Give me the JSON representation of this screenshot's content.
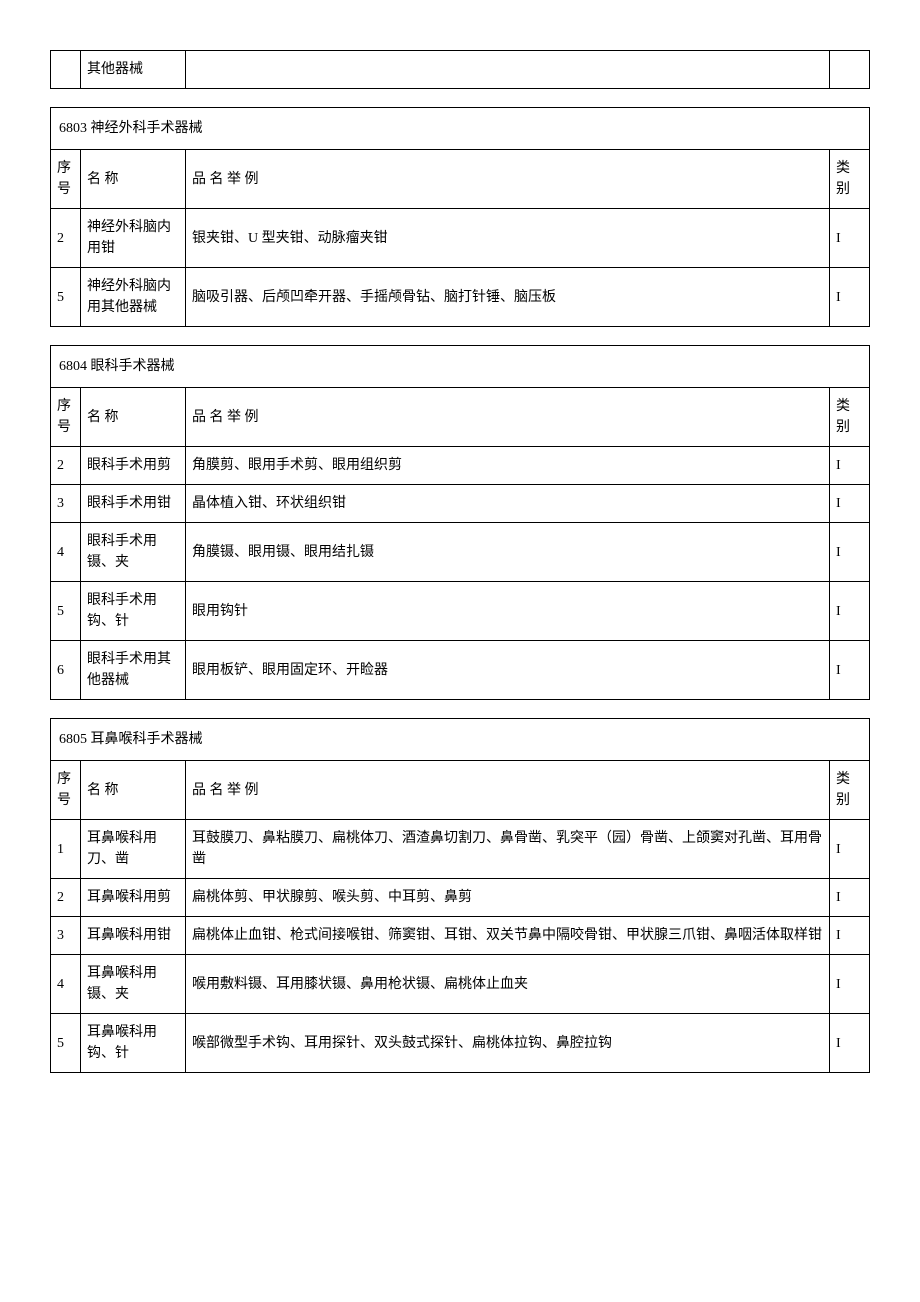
{
  "fragment_table": {
    "rows": [
      {
        "num": "",
        "name": "其他器械",
        "examples": "",
        "category": ""
      }
    ]
  },
  "tables": [
    {
      "title": "6803 神经外科手术器械",
      "headers": {
        "num": "序号",
        "name": "名 称",
        "examples": "品 名 举 例",
        "category": "类别"
      },
      "rows": [
        {
          "num": "2",
          "name": "神经外科脑内用钳",
          "examples": "银夹钳、U 型夹钳、动脉瘤夹钳",
          "category": "I"
        },
        {
          "num": "5",
          "name": "神经外科脑内用其他器械",
          "examples": "脑吸引器、后颅凹牵开器、手摇颅骨钻、脑打针锤、脑压板",
          "category": "I"
        }
      ]
    },
    {
      "title": "6804 眼科手术器械",
      "headers": {
        "num": "序号",
        "name": "名 称",
        "examples": "品 名 举 例",
        "category": "类别"
      },
      "rows": [
        {
          "num": "2",
          "name": "眼科手术用剪",
          "examples": "角膜剪、眼用手术剪、眼用组织剪",
          "category": "I"
        },
        {
          "num": "3",
          "name": "眼科手术用钳",
          "examples": "晶体植入钳、环状组织钳",
          "category": "I"
        },
        {
          "num": "4",
          "name": "眼科手术用镊、夹",
          "examples": "角膜镊、眼用镊、眼用结扎镊",
          "category": "I"
        },
        {
          "num": "5",
          "name": "眼科手术用钩、针",
          "examples": "眼用钩针",
          "category": "I"
        },
        {
          "num": "6",
          "name": "眼科手术用其他器械",
          "examples": "眼用板铲、眼用固定环、开睑器",
          "category": "I"
        }
      ]
    },
    {
      "title": "6805 耳鼻喉科手术器械",
      "headers": {
        "num": "序号",
        "name": "名 称",
        "examples": "品 名 举 例",
        "category": "类别"
      },
      "rows": [
        {
          "num": "1",
          "name": "耳鼻喉科用刀、凿",
          "examples": "耳鼓膜刀、鼻粘膜刀、扁桃体刀、酒渣鼻切割刀、鼻骨凿、乳突平（园）骨凿、上颌窦对孔凿、耳用骨凿",
          "category": "I"
        },
        {
          "num": "2",
          "name": "耳鼻喉科用剪",
          "examples": "扁桃体剪、甲状腺剪、喉头剪、中耳剪、鼻剪",
          "category": "I"
        },
        {
          "num": "3",
          "name": "耳鼻喉科用钳",
          "examples": "扁桃体止血钳、枪式间接喉钳、筛窦钳、耳钳、双关节鼻中隔咬骨钳、甲状腺三爪钳、鼻咽活体取样钳",
          "category": "I"
        },
        {
          "num": "4",
          "name": "耳鼻喉科用镊、夹",
          "examples": "喉用敷料镊、耳用膝状镊、鼻用枪状镊、扁桃体止血夹",
          "category": "I"
        },
        {
          "num": "5",
          "name": "耳鼻喉科用钩、针",
          "examples": "喉部微型手术钩、耳用探针、双头鼓式探针、扁桃体拉钩、鼻腔拉钩",
          "category": "I"
        }
      ]
    }
  ]
}
